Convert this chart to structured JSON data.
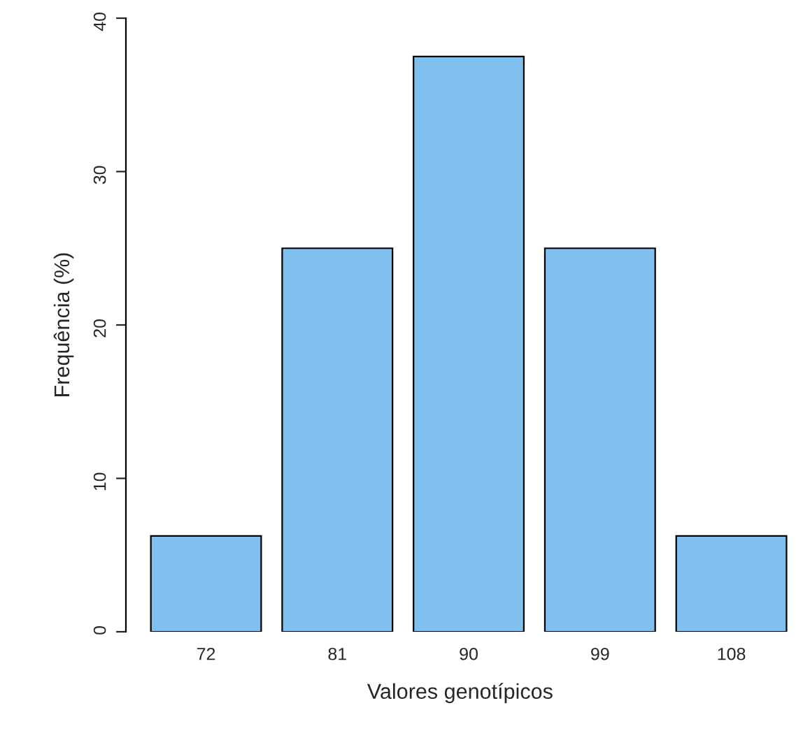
{
  "chart_data": {
    "type": "bar",
    "xlabel": "Valores genotípicos",
    "ylabel": "Frequência (%)",
    "categories": [
      "72",
      "81",
      "90",
      "99",
      "108"
    ],
    "values": [
      6.25,
      25,
      37.5,
      25,
      6.25
    ],
    "color": "#7fc0ee",
    "ylim": [
      0,
      40
    ],
    "yticks": [
      0,
      10,
      20,
      30,
      40
    ]
  }
}
